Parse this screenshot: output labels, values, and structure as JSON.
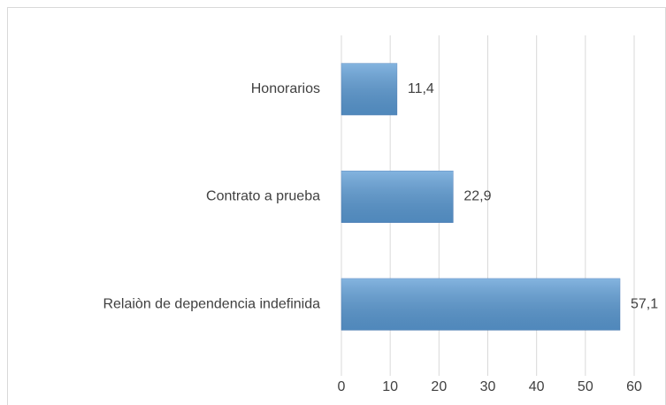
{
  "chart_data": {
    "type": "hbar",
    "categories": [
      "Honorarios",
      "Contrato a prueba",
      "Relaiòn de dependencia indefinida"
    ],
    "values": [
      11.4,
      22.9,
      57.1
    ],
    "value_labels": [
      "11,4",
      "22,9",
      "57,1"
    ],
    "color": "#5b9bd5",
    "xlim": [
      0,
      60
    ],
    "xticks": [
      0,
      10,
      20,
      30,
      40,
      50,
      60
    ],
    "grid": true
  }
}
